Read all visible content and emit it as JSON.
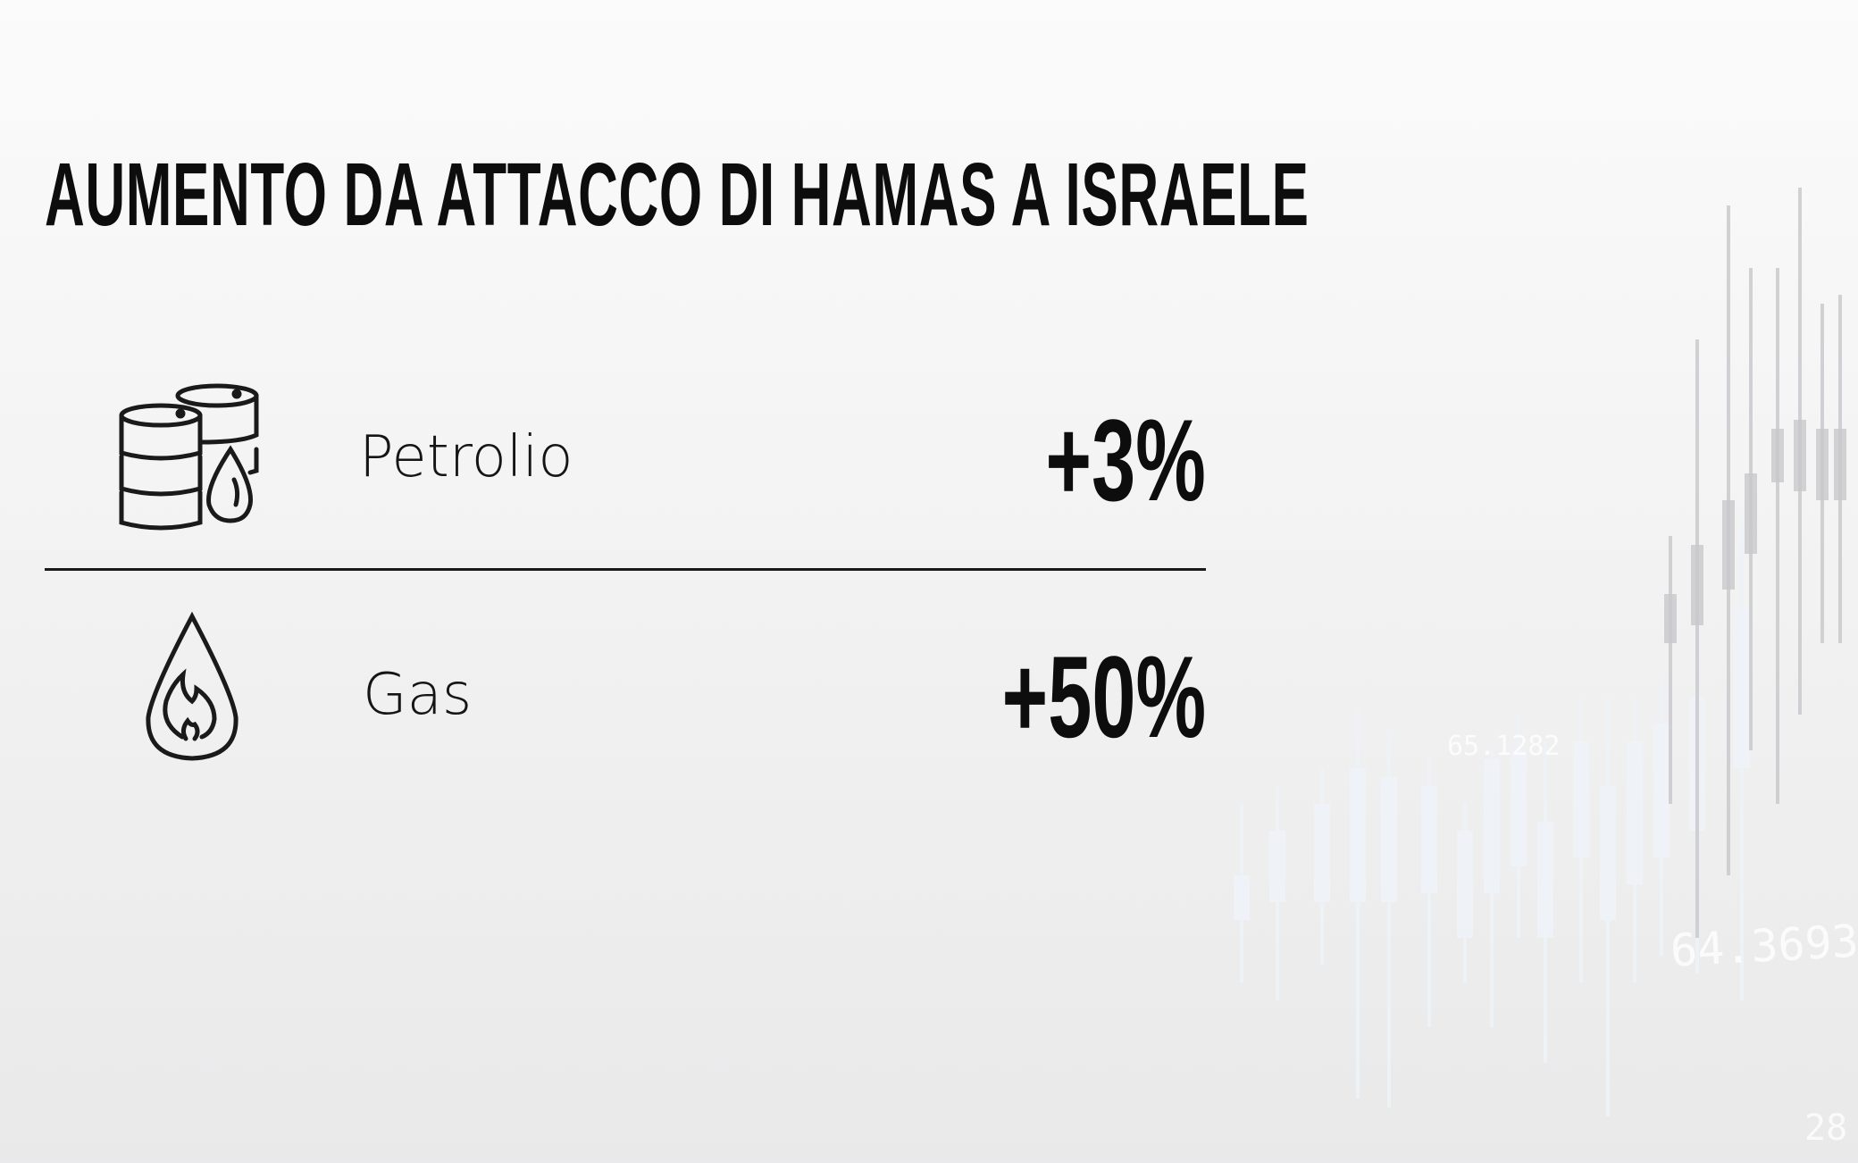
{
  "title": "AUMENTO DA ATTACCO DI HAMAS A ISRAELE",
  "items": [
    {
      "label": "Petrolio",
      "value": "+3%",
      "icon": "oil-barrels-icon"
    },
    {
      "label": "Gas",
      "value": "+50%",
      "icon": "gas-flame-drop-icon"
    }
  ],
  "background": {
    "labels": [
      "65.1282",
      "64.3693",
      "28"
    ],
    "colors": {
      "candles_dark": "#c8c8cc",
      "candles_light": "#eef3f8"
    }
  }
}
